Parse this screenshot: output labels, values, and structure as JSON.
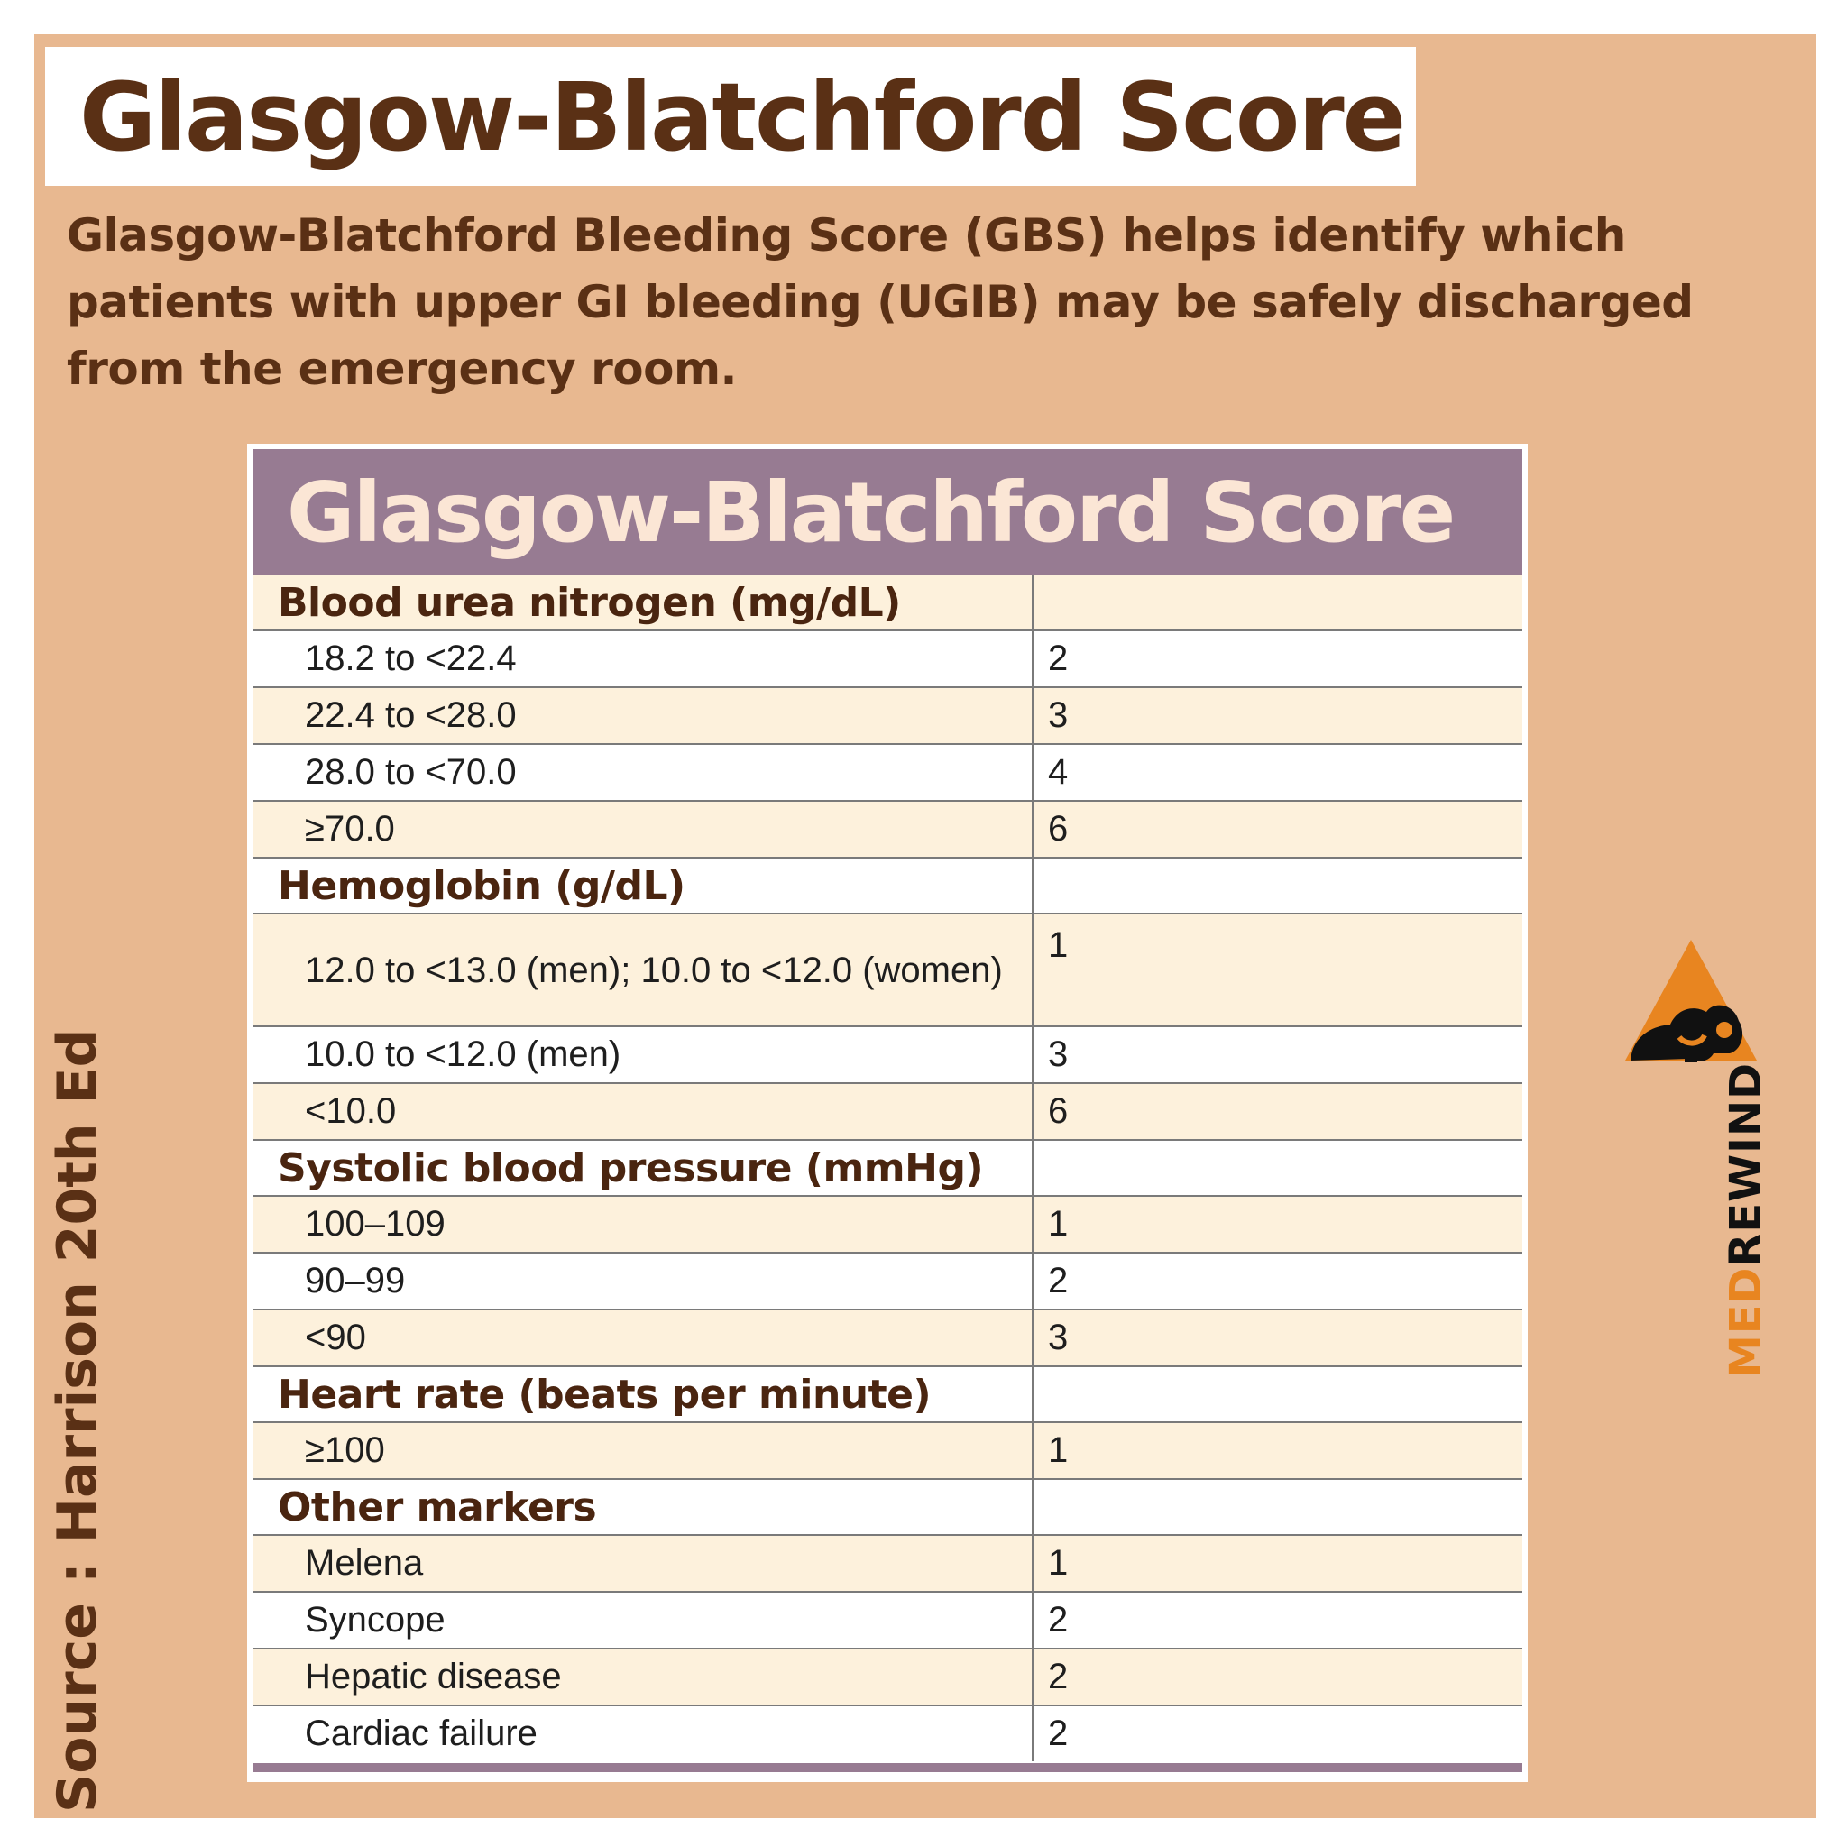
{
  "title": "Glasgow-Blatchford Score",
  "intro": "Glasgow-Blatchford Bleeding Score (GBS) helps identify which patients with upper GI bleeding (UGIB) may be safely discharged from the emergency room.",
  "source": "Source : Harrison 20th Ed",
  "table": {
    "heading": "Glasgow-Blatchford Score",
    "rows": [
      {
        "type": "header",
        "label": "Blood urea nitrogen (mg/dL)",
        "score": ""
      },
      {
        "type": "item",
        "label": "18.2 to <22.4",
        "score": "2"
      },
      {
        "type": "item",
        "label": "22.4 to <28.0",
        "score": "3"
      },
      {
        "type": "item",
        "label": "28.0 to <70.0",
        "score": "4"
      },
      {
        "type": "item",
        "label": "≥70.0",
        "score": "6"
      },
      {
        "type": "header",
        "label": "Hemoglobin (g/dL)",
        "score": ""
      },
      {
        "type": "item",
        "label": "12.0 to <13.0 (men); 10.0 to <12.0 (women)",
        "score": "1"
      },
      {
        "type": "item",
        "label": "10.0 to <12.0 (men)",
        "score": "3"
      },
      {
        "type": "item",
        "label": "<10.0",
        "score": "6"
      },
      {
        "type": "header",
        "label": "Systolic blood pressure (mmHg)",
        "score": ""
      },
      {
        "type": "item",
        "label": "100–109",
        "score": "1"
      },
      {
        "type": "item",
        "label": "90–99",
        "score": "2"
      },
      {
        "type": "item",
        "label": "<90",
        "score": "3"
      },
      {
        "type": "header",
        "label": "Heart rate (beats per minute)",
        "score": ""
      },
      {
        "type": "item",
        "label": "≥100",
        "score": "1"
      },
      {
        "type": "header",
        "label": "Other markers",
        "score": ""
      },
      {
        "type": "item",
        "label": "Melena",
        "score": "1"
      },
      {
        "type": "item",
        "label": "Syncope",
        "score": "2"
      },
      {
        "type": "item",
        "label": "Hepatic disease",
        "score": "2"
      },
      {
        "type": "item",
        "label": "Cardiac failure",
        "score": "2"
      }
    ]
  },
  "brand": {
    "part1": "MED",
    "part2": "REWIND",
    "accent_color": "#e88520",
    "icon": "triangle-stethoscope-logo"
  },
  "colors": {
    "background": "#e8b890",
    "text_brown": "#5a3015",
    "table_header": "#977b92",
    "row_cream": "#fdf1dc"
  }
}
